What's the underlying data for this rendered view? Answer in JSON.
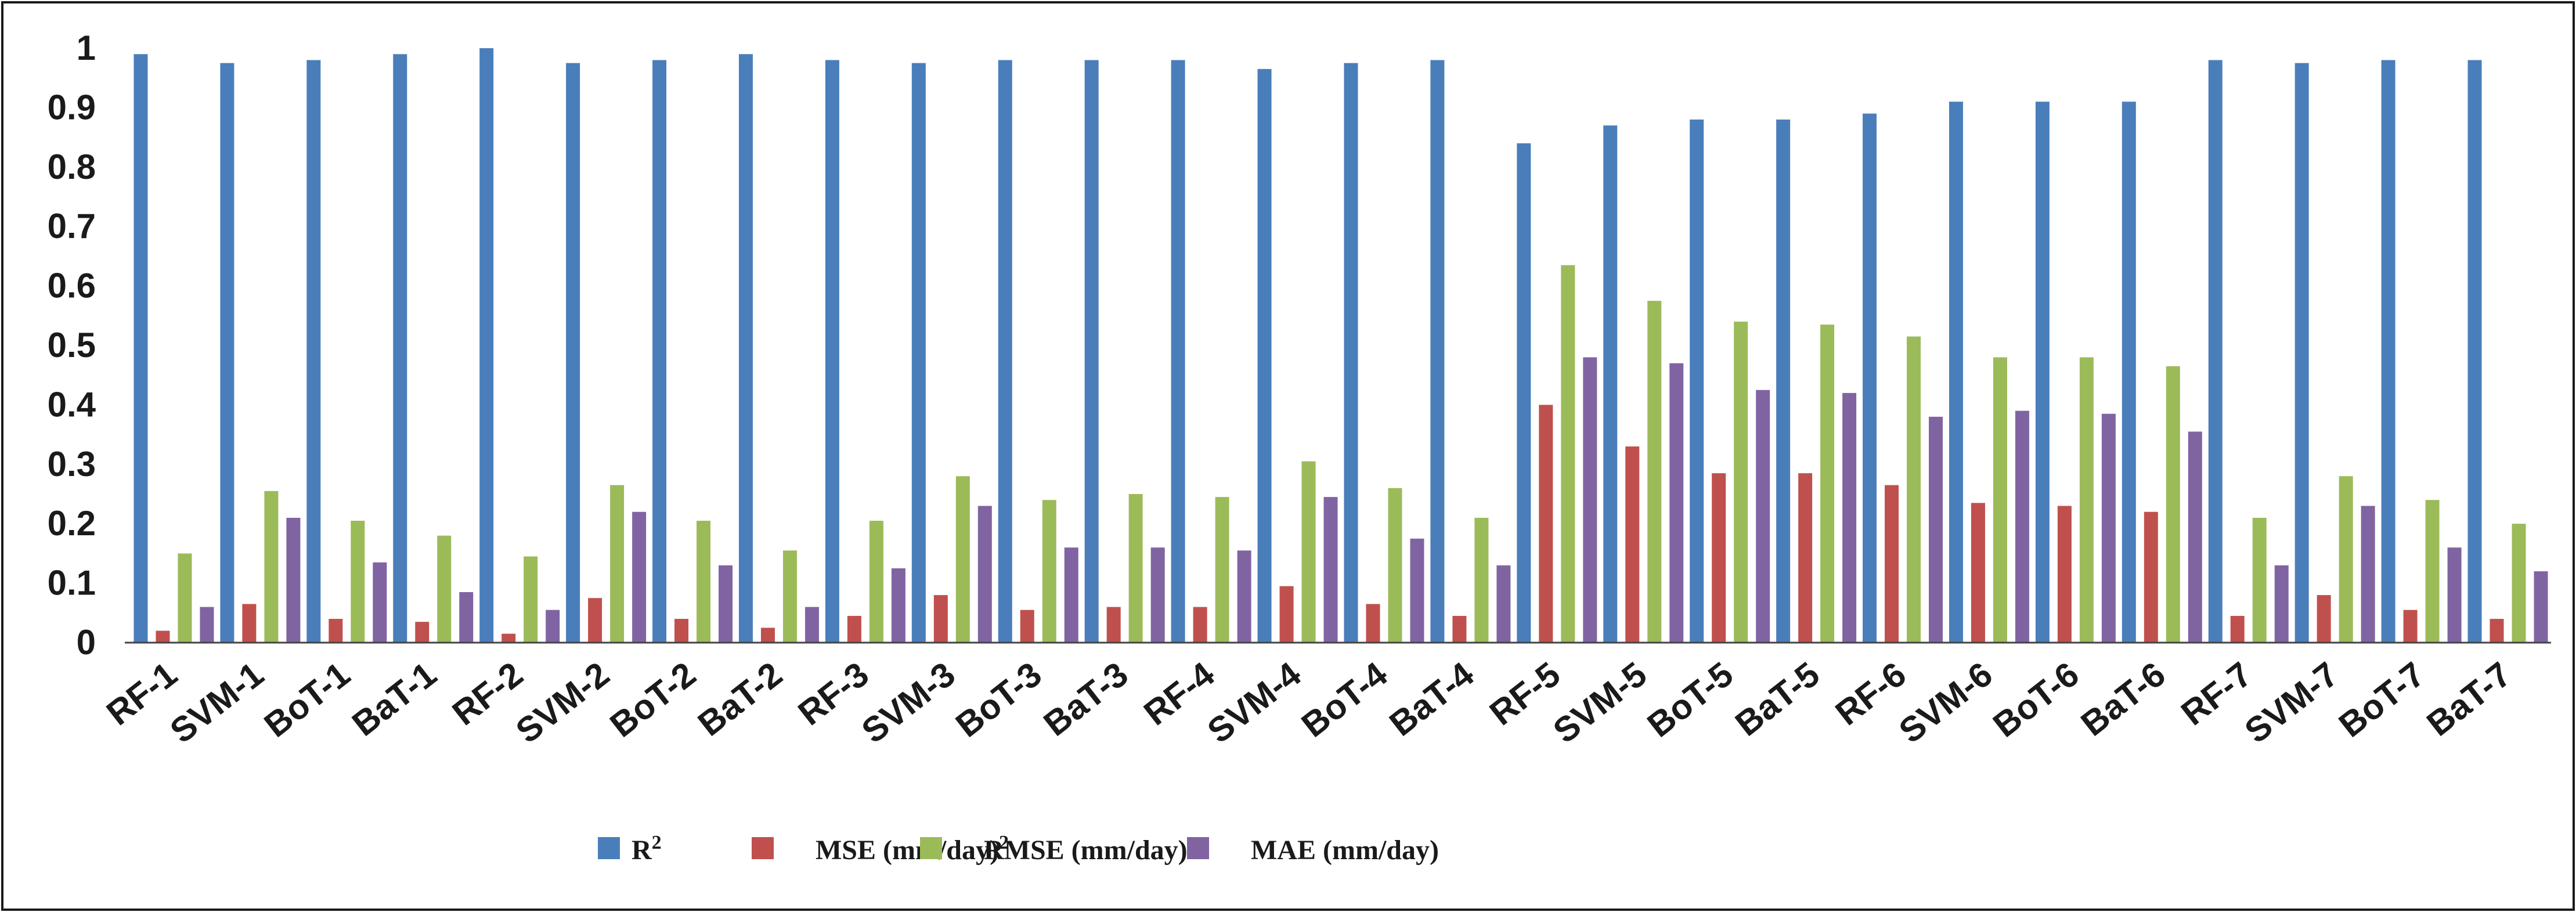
{
  "chart_data": {
    "type": "bar",
    "title": "",
    "xlabel": "",
    "ylabel": "",
    "ylim": [
      0,
      1
    ],
    "yticks": [
      "0",
      "0.1",
      "0.2",
      "0.3",
      "0.4",
      "0.5",
      "0.6",
      "0.7",
      "0.8",
      "0.9",
      "1"
    ],
    "grid": false,
    "legend_position": "bottom",
    "categories": [
      "RF-1",
      "SVM-1",
      "BoT-1",
      "BaT-1",
      "RF-2",
      "SVM-2",
      "BoT-2",
      "BaT-2",
      "RF-3",
      "SVM-3",
      "BoT-3",
      "BaT-3",
      "RF-4",
      "SVM-4",
      "BoT-4",
      "BaT-4",
      "RF-5",
      "SVM-5",
      "BoT-5",
      "BaT-5",
      "RF-6",
      "SVM-6",
      "BoT-6",
      "BaT-6",
      "RF-7",
      "SVM-7",
      "BoT-7",
      "BaT-7"
    ],
    "series": [
      {
        "name": "R",
        "name_sup": "2",
        "color": "#4a7ebb",
        "values": [
          0.99,
          0.975,
          0.98,
          0.99,
          1.0,
          0.975,
          0.98,
          0.99,
          0.98,
          0.975,
          0.98,
          0.98,
          0.98,
          0.965,
          0.975,
          0.98,
          0.84,
          0.87,
          0.88,
          0.88,
          0.89,
          0.91,
          0.91,
          0.91,
          0.98,
          0.975,
          0.98,
          0.98
        ]
      },
      {
        "name": "MSE (mm/day)",
        "name_sup": "2",
        "color": "#c0504d",
        "values": [
          0.02,
          0.065,
          0.04,
          0.035,
          0.015,
          0.075,
          0.04,
          0.025,
          0.045,
          0.08,
          0.055,
          0.06,
          0.06,
          0.095,
          0.065,
          0.045,
          0.4,
          0.33,
          0.285,
          0.285,
          0.265,
          0.235,
          0.23,
          0.22,
          0.045,
          0.08,
          0.055,
          0.04
        ]
      },
      {
        "name": "RMSE (mm/day)",
        "name_sup": "",
        "color": "#9bbb59",
        "values": [
          0.15,
          0.255,
          0.205,
          0.18,
          0.145,
          0.265,
          0.205,
          0.155,
          0.205,
          0.28,
          0.24,
          0.25,
          0.245,
          0.305,
          0.26,
          0.21,
          0.635,
          0.575,
          0.54,
          0.535,
          0.515,
          0.48,
          0.48,
          0.465,
          0.21,
          0.28,
          0.24,
          0.2
        ]
      },
      {
        "name": "MAE (mm/day)",
        "name_sup": "",
        "color": "#8064a2",
        "values": [
          0.06,
          0.21,
          0.135,
          0.085,
          0.055,
          0.22,
          0.13,
          0.06,
          0.125,
          0.23,
          0.16,
          0.16,
          0.155,
          0.245,
          0.175,
          0.13,
          0.48,
          0.47,
          0.425,
          0.42,
          0.38,
          0.39,
          0.385,
          0.355,
          0.13,
          0.23,
          0.16,
          0.12
        ]
      }
    ]
  }
}
